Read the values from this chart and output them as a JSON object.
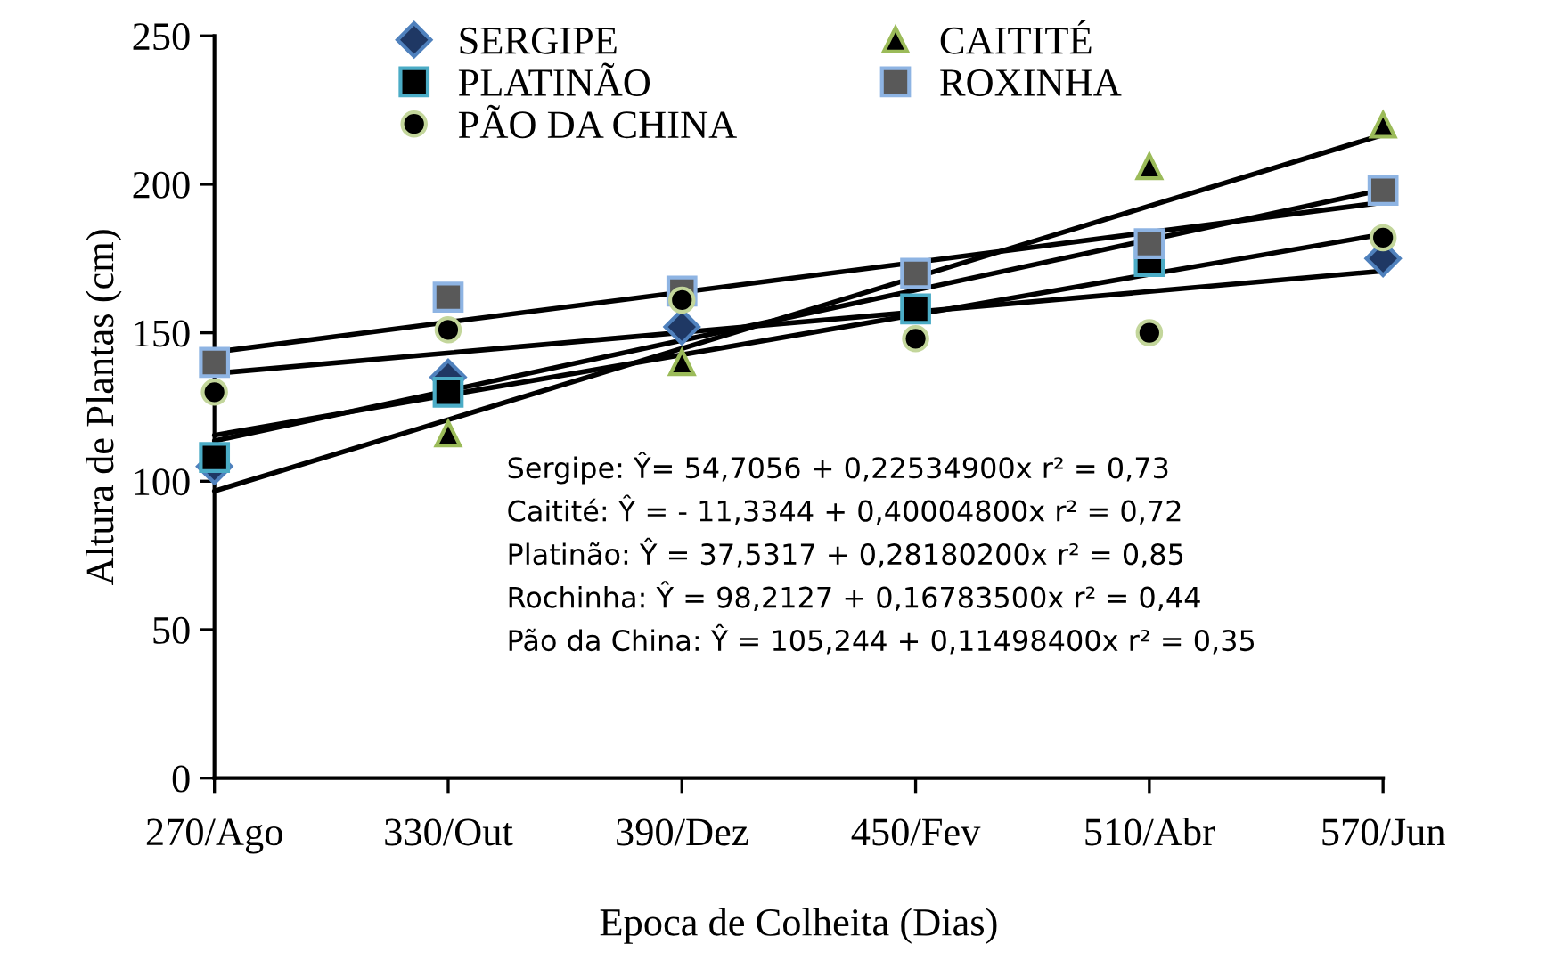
{
  "chart_data": {
    "type": "scatter",
    "xlabel": "Epoca de Colheita (Dias)",
    "ylabel": "Altura de Plantas (cm)",
    "x": [
      270,
      330,
      390,
      450,
      510,
      570
    ],
    "xlim": [
      270,
      570
    ],
    "xticks": [
      {
        "value": 270,
        "label": "270/Ago"
      },
      {
        "value": 330,
        "label": "330/Out"
      },
      {
        "value": 390,
        "label": "390/Dez"
      },
      {
        "value": 450,
        "label": "450/Fev"
      },
      {
        "value": 510,
        "label": "510/Abr"
      },
      {
        "value": 570,
        "label": "570/Jun"
      }
    ],
    "ylim": [
      0,
      250
    ],
    "yticks": [
      0,
      50,
      100,
      150,
      200,
      250
    ],
    "grid": false,
    "legend": "top left",
    "series": [
      {
        "name": "SERGIPE",
        "color": "#1f3864",
        "marker": "diamond",
        "values": [
          105,
          135,
          152,
          null,
          null,
          175
        ]
      },
      {
        "name": "CAITITÉ",
        "color": "#000000",
        "marker": "triangle",
        "values": [
          null,
          116,
          140,
          null,
          206,
          220
        ]
      },
      {
        "name": "PLATINÃO",
        "color": "#000000",
        "marker": "square",
        "values": [
          108,
          130,
          null,
          158,
          174,
          null
        ]
      },
      {
        "name": "ROXINHA",
        "color": "#595959",
        "marker": "square",
        "values": [
          140,
          162,
          164,
          170,
          180,
          198
        ]
      },
      {
        "name": "PÃO DA CHINA",
        "color": "#000000",
        "marker": "circle",
        "values": [
          130,
          151,
          161,
          148,
          150,
          182
        ]
      },
      {
        "type": "line",
        "color": "#000000",
        "marker": "none",
        "values": [
          115.5,
          null,
          null,
          null,
          null,
          183.2
        ]
      },
      {
        "type": "line",
        "color": "#000000",
        "marker": "none",
        "values": [
          96.7,
          null,
          null,
          null,
          null,
          216.7
        ]
      },
      {
        "type": "line",
        "color": "#000000",
        "marker": "none",
        "values": [
          113.6,
          null,
          null,
          null,
          null,
          198.2
        ]
      },
      {
        "type": "line",
        "color": "#000000",
        "marker": "none",
        "values": [
          143.5,
          null,
          null,
          null,
          null,
          193.9
        ]
      },
      {
        "type": "line",
        "color": "#000000",
        "marker": "none",
        "values": [
          136.3,
          null,
          null,
          null,
          null,
          170.8
        ]
      }
    ],
    "annotations": [
      "Sergipe: Ŷ= 54,7056 + 0,22534900x r² = 0,73",
      "Caitité: Ŷ = - 11,3344 + 0,40004800x r² = 0,72",
      "Platinão: Ŷ = 37,5317 + 0,28180200x r² = 0,85",
      "Rochinha: Ŷ = 98,2127 + 0,16783500x r² = 0,44",
      "Pão da China: Ŷ = 105,244 + 0,11498400x r² = 0,35"
    ]
  }
}
